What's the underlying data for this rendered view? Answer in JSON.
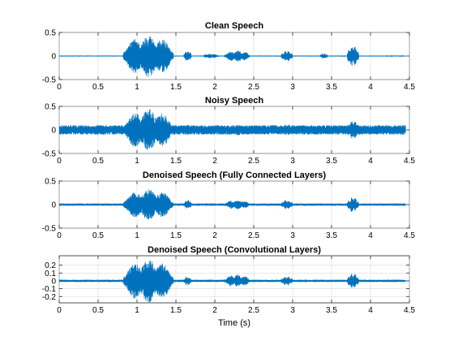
{
  "figure": {
    "background": "#ffffff",
    "series_color": "#0072BD"
  },
  "chart_data": [
    {
      "type": "line",
      "title": "Clean Speech",
      "xlabel": "",
      "ylabel": "",
      "xlim": [
        0,
        4.5
      ],
      "ylim": [
        -0.5,
        0.5
      ],
      "xticks": [
        0,
        0.5,
        1,
        1.5,
        2,
        2.5,
        3,
        3.5,
        4,
        4.5
      ],
      "xtick_labels": [
        "0",
        "0.5",
        "1",
        "1.5",
        "2",
        "2.5",
        "3",
        "3.5",
        "4",
        "4.5"
      ],
      "yticks": [
        -0.5,
        0,
        0.5
      ],
      "ytick_labels": [
        "-0.5",
        "0",
        "0.5"
      ],
      "grid": true,
      "duration": 4.45,
      "noise_floor": 0.01,
      "segments": [
        {
          "start": 0.82,
          "end": 1.47,
          "peak": 0.45
        },
        {
          "start": 1.6,
          "end": 1.7,
          "peak": 0.12
        },
        {
          "start": 1.85,
          "end": 2.05,
          "peak": 0.05
        },
        {
          "start": 2.12,
          "end": 2.45,
          "peak": 0.12
        },
        {
          "start": 2.85,
          "end": 3.0,
          "peak": 0.12
        },
        {
          "start": 3.35,
          "end": 3.45,
          "peak": 0.06
        },
        {
          "start": 3.7,
          "end": 3.85,
          "peak": 0.22
        }
      ]
    },
    {
      "type": "line",
      "title": "Noisy Speech",
      "xlabel": "",
      "ylabel": "",
      "xlim": [
        0,
        4.5
      ],
      "ylim": [
        -0.5,
        0.5
      ],
      "xticks": [
        0,
        0.5,
        1,
        1.5,
        2,
        2.5,
        3,
        3.5,
        4,
        4.5
      ],
      "xtick_labels": [
        "0",
        "0.5",
        "1",
        "1.5",
        "2",
        "2.5",
        "3",
        "3.5",
        "4",
        "4.5"
      ],
      "yticks": [
        -0.5,
        0,
        0.5
      ],
      "ytick_labels": [
        "-0.5",
        "0",
        "0.5"
      ],
      "grid": true,
      "duration": 4.45,
      "noise_floor": 0.1,
      "segments": [
        {
          "start": 0.82,
          "end": 1.47,
          "peak": 0.45
        },
        {
          "start": 1.6,
          "end": 1.7,
          "peak": 0.12
        },
        {
          "start": 2.12,
          "end": 2.45,
          "peak": 0.12
        },
        {
          "start": 2.85,
          "end": 3.0,
          "peak": 0.12
        },
        {
          "start": 3.7,
          "end": 3.85,
          "peak": 0.2
        }
      ]
    },
    {
      "type": "line",
      "title": "Denoised Speech (Fully Connected Layers)",
      "xlabel": "",
      "ylabel": "",
      "xlim": [
        0,
        4.5
      ],
      "ylim": [
        -0.5,
        0.5
      ],
      "xticks": [
        0,
        0.5,
        1,
        1.5,
        2,
        2.5,
        3,
        3.5,
        4,
        4.5
      ],
      "xtick_labels": [
        "0",
        "0.5",
        "1",
        "1.5",
        "2",
        "2.5",
        "3",
        "3.5",
        "4",
        "4.5"
      ],
      "yticks": [
        -0.5,
        0,
        0.5
      ],
      "ytick_labels": [
        "-0.5",
        "0",
        "0.5"
      ],
      "grid": true,
      "duration": 4.45,
      "noise_floor": 0.025,
      "segments": [
        {
          "start": 0.82,
          "end": 1.47,
          "peak": 0.33
        },
        {
          "start": 1.6,
          "end": 1.7,
          "peak": 0.1
        },
        {
          "start": 2.12,
          "end": 2.45,
          "peak": 0.1
        },
        {
          "start": 2.85,
          "end": 3.0,
          "peak": 0.1
        },
        {
          "start": 3.7,
          "end": 3.85,
          "peak": 0.16
        }
      ]
    },
    {
      "type": "line",
      "title": "Denoised Speech (Convolutional Layers)",
      "xlabel": "Time (s)",
      "ylabel": "",
      "xlim": [
        0,
        4.5
      ],
      "ylim": [
        -0.28,
        0.32
      ],
      "xticks": [
        0,
        0.5,
        1,
        1.5,
        2,
        2.5,
        3,
        3.5,
        4,
        4.5
      ],
      "xtick_labels": [
        "0",
        "0.5",
        "1",
        "1.5",
        "2",
        "2.5",
        "3",
        "3.5",
        "4",
        "4.5"
      ],
      "yticks": [
        -0.2,
        -0.1,
        0,
        0.1,
        0.2
      ],
      "ytick_labels": [
        "-0.2",
        "-0.1",
        "0",
        "0.1",
        "0.2"
      ],
      "grid": true,
      "duration": 4.45,
      "noise_floor": 0.015,
      "segments": [
        {
          "start": 0.82,
          "end": 1.47,
          "peak": 0.28
        },
        {
          "start": 1.6,
          "end": 1.7,
          "peak": 0.06
        },
        {
          "start": 2.12,
          "end": 2.45,
          "peak": 0.08
        },
        {
          "start": 2.85,
          "end": 3.0,
          "peak": 0.06
        },
        {
          "start": 3.7,
          "end": 3.85,
          "peak": 0.1
        }
      ]
    }
  ]
}
